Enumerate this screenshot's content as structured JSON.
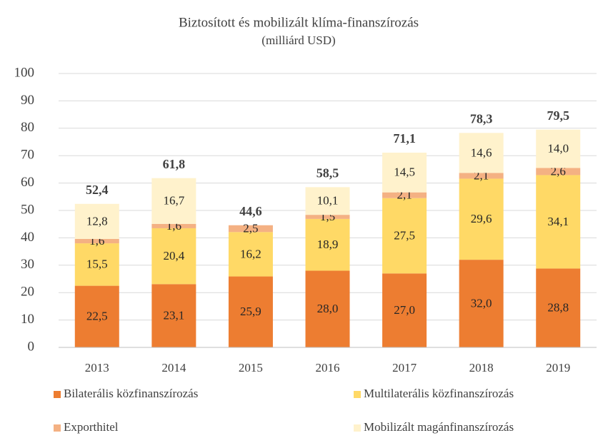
{
  "chart_data": {
    "type": "stacked_bar",
    "title": "Biztosított és mobilizált klíma-finanszírozás",
    "subtitle": "(milliárd  USD)",
    "categories": [
      "2013",
      "2014",
      "2015",
      "2016",
      "2017",
      "2018",
      "2019"
    ],
    "series": [
      {
        "name": "Bilaterális közfinanszírozás",
        "color": "#ed7d31",
        "values": [
          22.5,
          23.1,
          25.9,
          28.0,
          27.0,
          32.0,
          28.8
        ],
        "value_labels": [
          "22,5",
          "23,1",
          "25,9",
          "28,0",
          "27,0",
          "32,0",
          "28,8"
        ]
      },
      {
        "name": "Multilaterális közfinanszírozás",
        "color": "#ffd966",
        "values": [
          15.5,
          20.4,
          16.2,
          18.9,
          27.5,
          29.6,
          34.1
        ],
        "value_labels": [
          "15,5",
          "20,4",
          "16,2",
          "18,9",
          "27,5",
          "29,6",
          "34,1"
        ]
      },
      {
        "name": "Exporthitel",
        "color": "#f4b183",
        "values": [
          1.6,
          1.6,
          2.5,
          1.5,
          2.1,
          2.1,
          2.6
        ],
        "value_labels": [
          "1,6",
          "1,6",
          "2,5",
          "1,5",
          "2,1",
          "2,1",
          "2,6"
        ]
      },
      {
        "name": "Mobilizált magánfinanszírozás",
        "color": "#fff2cc",
        "values": [
          12.8,
          16.7,
          null,
          10.1,
          14.5,
          14.6,
          14.0
        ],
        "value_labels": [
          "12,8",
          "16,7",
          null,
          "10,1",
          "14,5",
          "14,6",
          "14,0"
        ]
      }
    ],
    "totals": [
      52.4,
      61.8,
      44.6,
      58.5,
      71.1,
      78.3,
      79.5
    ],
    "total_labels": [
      "52,4",
      "61,8",
      "44,6",
      "58,5",
      "71,1",
      "78,3",
      "79,5"
    ],
    "ylim": [
      0,
      100
    ],
    "yticks": [
      0,
      10,
      20,
      30,
      40,
      50,
      60,
      70,
      80,
      90,
      100
    ],
    "grid": true
  }
}
